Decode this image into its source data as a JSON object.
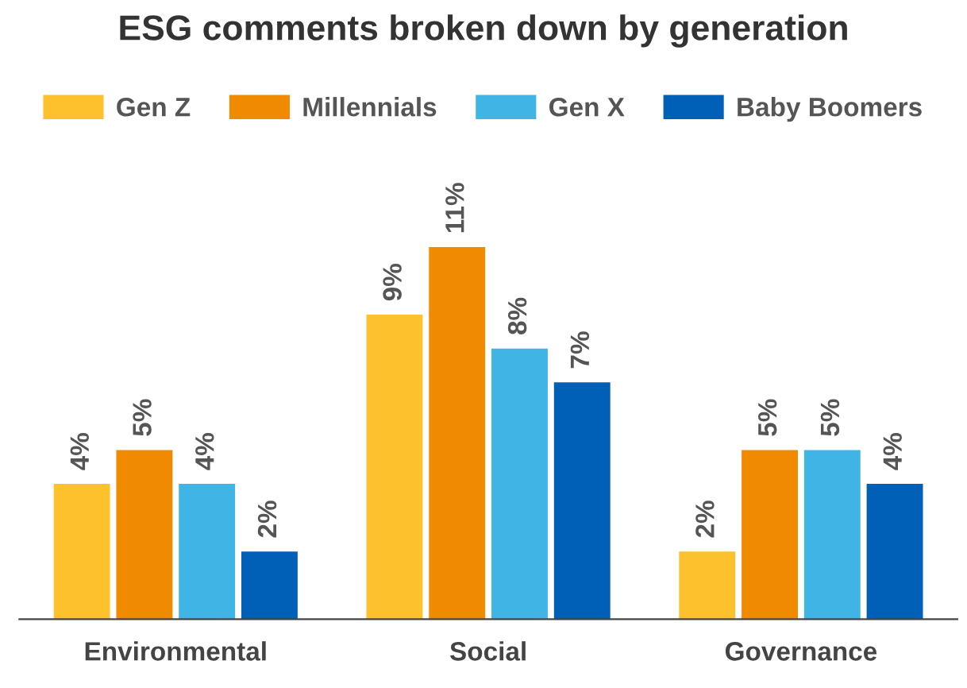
{
  "chart_data": {
    "type": "bar",
    "title": "ESG comments broken down by generation",
    "categories": [
      "Environmental",
      "Social",
      "Governance"
    ],
    "series": [
      {
        "name": "Gen Z",
        "color": "#fcc12d",
        "values": [
          4,
          9,
          2
        ],
        "value_labels": [
          "4%",
          "9%",
          "2%"
        ]
      },
      {
        "name": "Millennials",
        "color": "#f08a00",
        "values": [
          5,
          11,
          5
        ],
        "value_labels": [
          "5%",
          "11%",
          "5%"
        ]
      },
      {
        "name": "Gen X",
        "color": "#41b4e6",
        "values": [
          4,
          8,
          5
        ],
        "value_labels": [
          "4%",
          "8%",
          "5%"
        ]
      },
      {
        "name": "Baby Boomers",
        "color": "#0060b8",
        "values": [
          2,
          7,
          4
        ],
        "value_labels": [
          "2%",
          "7%",
          "4%"
        ]
      }
    ],
    "legend": "top",
    "grid": false
  }
}
